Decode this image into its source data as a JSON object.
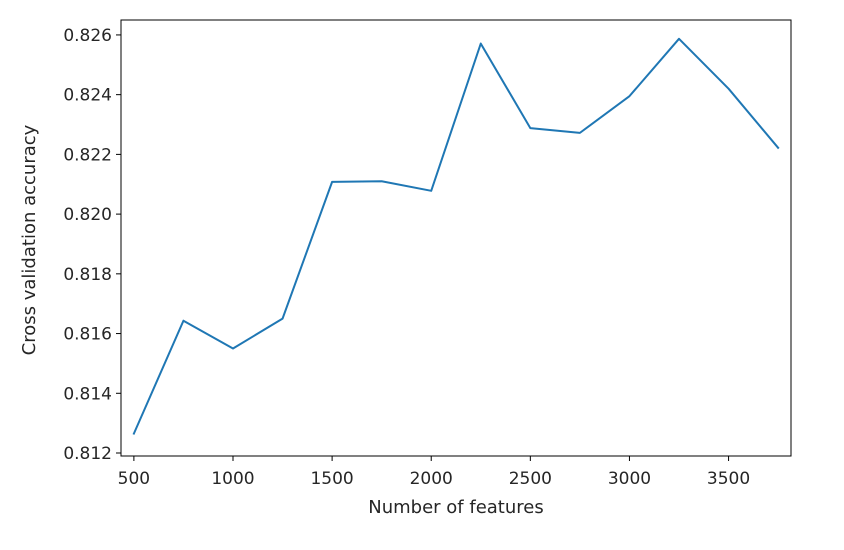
{
  "chart_data": {
    "type": "line",
    "xlabel": "Number of features",
    "ylabel": "Cross validation accuracy",
    "xlim": [
      435,
      3815
    ],
    "ylim": [
      0.8119,
      0.8265
    ],
    "xticks": [
      500,
      1000,
      1500,
      2000,
      2500,
      3000,
      3500
    ],
    "yticks": [
      0.812,
      0.814,
      0.816,
      0.818,
      0.82,
      0.822,
      0.824,
      0.826
    ],
    "ytick_labels": [
      "0.812",
      "0.814",
      "0.816",
      "0.818",
      "0.820",
      "0.822",
      "0.824",
      "0.826"
    ],
    "grid": false,
    "series": [
      {
        "color": "#1f77b4",
        "x": [
          500,
          750,
          1000,
          1250,
          1500,
          1750,
          2000,
          2250,
          2500,
          2750,
          3000,
          3250,
          3500,
          3750
        ],
        "y": [
          0.81265,
          0.81643,
          0.8155,
          0.8165,
          0.82108,
          0.8211,
          0.82078,
          0.82571,
          0.82288,
          0.82272,
          0.82395,
          0.82587,
          0.8242,
          0.82222
        ]
      }
    ]
  }
}
